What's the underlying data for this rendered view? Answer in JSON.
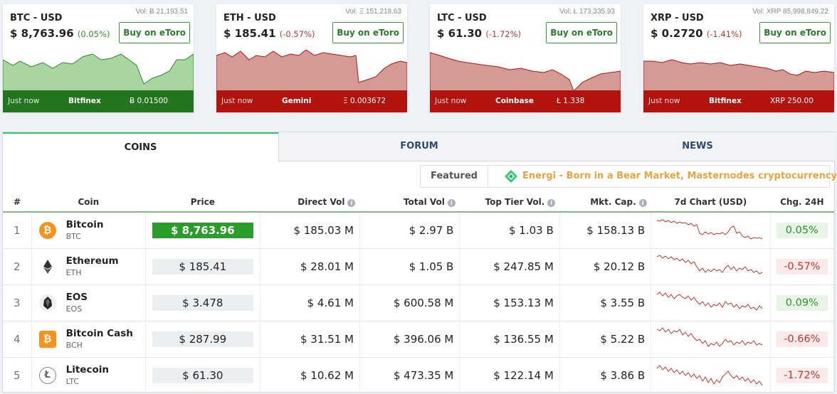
{
  "tickers": [
    {
      "pair": "BTC - USD",
      "vol": "Vol: Ƀ 21,193.51",
      "price": "$ 8,763.96",
      "change": "(0.05%)",
      "direction": "up",
      "buy_label": "Buy on eToro",
      "time": "Just now",
      "exchange": "Bitfinex",
      "amount": "Ƀ 0.01500"
    },
    {
      "pair": "ETH - USD",
      "vol": "Vol: Ξ 151,218.63",
      "price": "$ 185.41",
      "change": "(-0.57%)",
      "direction": "down",
      "buy_label": "Buy on eToro",
      "time": "Just now",
      "exchange": "Gemini",
      "amount": "Ξ 0.003672"
    },
    {
      "pair": "LTC - USD",
      "vol": "Vol: Ł 173,335.93",
      "price": "$ 61.30",
      "change": "(-1.72%)",
      "direction": "down",
      "buy_label": "Buy on eToro",
      "time": "Just now",
      "exchange": "Coinbase",
      "amount": "Ł 1.338"
    },
    {
      "pair": "XRP - USD",
      "vol": "Vol: XRP 85,998,849.22",
      "price": "$ 0.2720",
      "change": "(-1.41%)",
      "direction": "down",
      "buy_label": "Buy on eToro",
      "time": "Just now",
      "exchange": "Bitfinex",
      "amount": "XRP 250.00"
    }
  ],
  "tabs": {
    "coins": "COINS",
    "forum": "FORUM",
    "news": "NEWS"
  },
  "featured": {
    "label": "Featured",
    "text": "Energi - Born in a Bear Market, Masternodes cryptocurrency"
  },
  "table": {
    "headers": {
      "rank": "#",
      "coin": "Coin",
      "price": "Price",
      "direct_vol": "Direct Vol",
      "total_vol": "Total Vol",
      "top_tier_vol": "Top Tier Vol.",
      "mkt_cap": "Mkt. Cap.",
      "chart": "7d Chart (USD)",
      "chg": "Chg. 24H"
    },
    "rows": [
      {
        "rank": "1",
        "name": "Bitcoin",
        "symbol": "BTC",
        "price": "$ 8,763.96",
        "direct_vol": "$ 185.03 M",
        "total_vol": "$ 2.97 B",
        "top_tier_vol": "$ 1.03 B",
        "mkt_cap": "$ 158.13 B",
        "chg": "0.05%",
        "direction": "up",
        "icon": "bitcoin-icon"
      },
      {
        "rank": "2",
        "name": "Ethereum",
        "symbol": "ETH",
        "price": "$ 185.41",
        "direct_vol": "$ 28.01 M",
        "total_vol": "$ 1.05 B",
        "top_tier_vol": "$ 247.85 M",
        "mkt_cap": "$ 20.12 B",
        "chg": "-0.57%",
        "direction": "down",
        "icon": "ethereum-icon"
      },
      {
        "rank": "3",
        "name": "EOS",
        "symbol": "EOS",
        "price": "$ 3.478",
        "direct_vol": "$ 4.61 M",
        "total_vol": "$ 600.58 M",
        "top_tier_vol": "$ 153.13 M",
        "mkt_cap": "$ 3.55 B",
        "chg": "0.09%",
        "direction": "up",
        "icon": "eos-icon"
      },
      {
        "rank": "4",
        "name": "Bitcoin Cash",
        "symbol": "BCH",
        "price": "$ 287.99",
        "direct_vol": "$ 31.51 M",
        "total_vol": "$ 396.06 M",
        "top_tier_vol": "$ 136.55 M",
        "mkt_cap": "$ 5.22 B",
        "chg": "-0.66%",
        "direction": "down",
        "icon": "bitcoin-cash-icon"
      },
      {
        "rank": "5",
        "name": "Litecoin",
        "symbol": "LTC",
        "price": "$ 61.30",
        "direct_vol": "$ 10.62 M",
        "total_vol": "$ 473.35 M",
        "top_tier_vol": "$ 122.14 M",
        "mkt_cap": "$ 3.86 B",
        "chg": "-1.72%",
        "direction": "down",
        "icon": "litecoin-icon"
      }
    ]
  },
  "colors": {
    "up": "#2f8f2f",
    "down": "#c0392b",
    "accent_green": "#2ecc71",
    "featured_orange": "#e8a53d"
  }
}
